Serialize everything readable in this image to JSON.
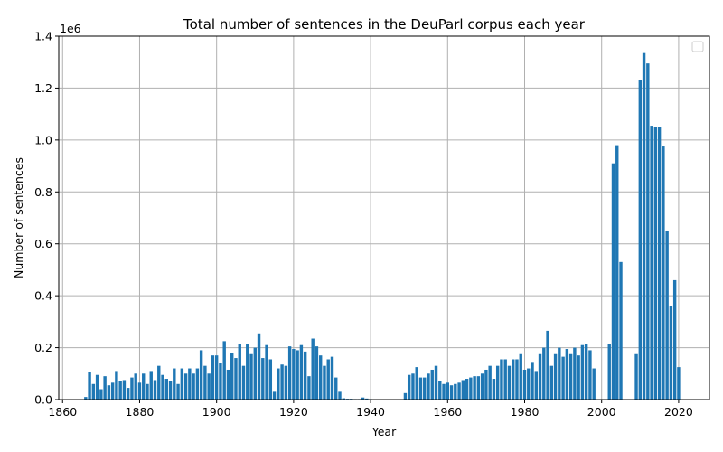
{
  "chart_data": {
    "type": "bar",
    "title": "Total number of sentences in the DeuParl corpus each year",
    "xlabel": "Year",
    "ylabel": "Number of sentences",
    "y_offset_label": "1e6",
    "xlim": [
      1859,
      2028
    ],
    "ylim": [
      0,
      1400000
    ],
    "x_ticks": [
      1860,
      1880,
      1900,
      1920,
      1940,
      1960,
      1980,
      2000,
      2020
    ],
    "y_ticks": [
      0,
      200000,
      400000,
      600000,
      800000,
      1000000,
      1200000,
      1400000
    ],
    "y_tick_labels": [
      "0.0",
      "0.2",
      "0.4",
      "0.6",
      "0.8",
      "1.0",
      "1.2",
      "1.4"
    ],
    "grid": true,
    "legend": "top-right, empty",
    "bar_color": "#1f77b4",
    "x": [
      1866,
      1867,
      1868,
      1869,
      1870,
      1871,
      1872,
      1873,
      1874,
      1875,
      1876,
      1877,
      1878,
      1879,
      1880,
      1881,
      1882,
      1883,
      1884,
      1885,
      1886,
      1887,
      1888,
      1889,
      1890,
      1891,
      1892,
      1893,
      1894,
      1895,
      1896,
      1897,
      1898,
      1899,
      1900,
      1901,
      1902,
      1903,
      1904,
      1905,
      1906,
      1907,
      1908,
      1909,
      1910,
      1911,
      1912,
      1913,
      1914,
      1915,
      1916,
      1917,
      1918,
      1919,
      1920,
      1921,
      1922,
      1923,
      1924,
      1925,
      1926,
      1927,
      1928,
      1929,
      1930,
      1931,
      1932,
      1933,
      1934,
      1935,
      1936,
      1937,
      1938,
      1939,
      1940,
      1949,
      1950,
      1951,
      1952,
      1953,
      1954,
      1955,
      1956,
      1957,
      1958,
      1959,
      1960,
      1961,
      1962,
      1963,
      1964,
      1965,
      1966,
      1967,
      1968,
      1969,
      1970,
      1971,
      1972,
      1973,
      1974,
      1975,
      1976,
      1977,
      1978,
      1979,
      1980,
      1981,
      1982,
      1983,
      1984,
      1985,
      1986,
      1987,
      1988,
      1989,
      1990,
      1991,
      1992,
      1993,
      1994,
      1995,
      1996,
      1997,
      1998,
      2002,
      2003,
      2004,
      2005,
      2009,
      2010,
      2011,
      2012,
      2013,
      2014,
      2015,
      2016,
      2017,
      2018,
      2019,
      2020
    ],
    "values": [
      10000,
      105000,
      60000,
      95000,
      40000,
      90000,
      55000,
      65000,
      110000,
      70000,
      75000,
      45000,
      85000,
      100000,
      65000,
      100000,
      60000,
      110000,
      75000,
      130000,
      95000,
      80000,
      70000,
      120000,
      60000,
      120000,
      100000,
      120000,
      100000,
      120000,
      190000,
      130000,
      100000,
      170000,
      170000,
      140000,
      225000,
      115000,
      180000,
      160000,
      215000,
      130000,
      215000,
      175000,
      200000,
      255000,
      160000,
      210000,
      155000,
      30000,
      120000,
      135000,
      130000,
      205000,
      195000,
      190000,
      210000,
      185000,
      90000,
      235000,
      205000,
      170000,
      130000,
      155000,
      165000,
      85000,
      30000,
      5000,
      3000,
      3000,
      2000,
      2000,
      8000,
      4000,
      2000,
      25000,
      95000,
      100000,
      125000,
      85000,
      85000,
      100000,
      115000,
      130000,
      70000,
      60000,
      65000,
      55000,
      60000,
      65000,
      75000,
      80000,
      85000,
      90000,
      90000,
      100000,
      115000,
      130000,
      80000,
      130000,
      155000,
      155000,
      130000,
      155000,
      155000,
      175000,
      115000,
      120000,
      145000,
      110000,
      175000,
      200000,
      265000,
      130000,
      175000,
      200000,
      165000,
      195000,
      175000,
      200000,
      170000,
      210000,
      215000,
      190000,
      120000,
      215000,
      910000,
      980000,
      530000,
      175000,
      1230000,
      1335000,
      1295000,
      1055000,
      1050000,
      1050000,
      975000,
      650000,
      360000,
      460000,
      125000
    ]
  }
}
